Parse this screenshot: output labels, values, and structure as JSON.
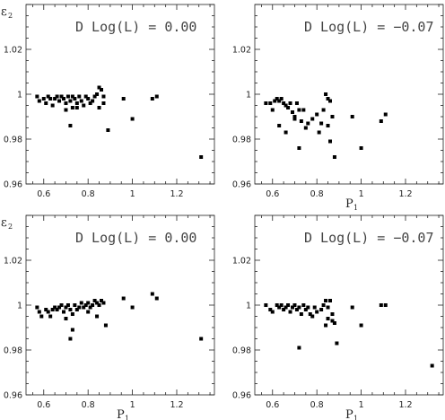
{
  "chart_data": [
    {
      "type": "scatter",
      "ylabel": "ε",
      "ylabel_sub": "2",
      "xlabel": "",
      "xlabel_sub": "",
      "annotation": "D Log(L) =  0.00",
      "xlim": [
        0.52,
        1.37
      ],
      "ylim": [
        0.96,
        1.04
      ],
      "xticks": [
        "0.6",
        "0.8",
        "1",
        "1.2"
      ],
      "yticks": [
        "0.96",
        "0.98",
        "1",
        "1.02"
      ],
      "points": [
        [
          0.57,
          0.999
        ],
        [
          0.58,
          0.997
        ],
        [
          0.6,
          0.998
        ],
        [
          0.61,
          0.996
        ],
        [
          0.62,
          0.999
        ],
        [
          0.63,
          0.998
        ],
        [
          0.64,
          0.995
        ],
        [
          0.65,
          0.998
        ],
        [
          0.66,
          0.999
        ],
        [
          0.67,
          0.997
        ],
        [
          0.68,
          0.999
        ],
        [
          0.69,
          0.998
        ],
        [
          0.7,
          0.996
        ],
        [
          0.7,
          0.993
        ],
        [
          0.71,
          0.999
        ],
        [
          0.72,
          0.997
        ],
        [
          0.73,
          0.994
        ],
        [
          0.73,
          0.999
        ],
        [
          0.74,
          0.998
        ],
        [
          0.75,
          0.996
        ],
        [
          0.75,
          0.994
        ],
        [
          0.76,
          0.999
        ],
        [
          0.77,
          0.997
        ],
        [
          0.78,
          0.995
        ],
        [
          0.79,
          0.999
        ],
        [
          0.8,
          0.998
        ],
        [
          0.81,
          0.996
        ],
        [
          0.82,
          0.997
        ],
        [
          0.83,
          0.999
        ],
        [
          0.84,
          1.0
        ],
        [
          0.85,
          1.003
        ],
        [
          0.86,
          1.002
        ],
        [
          0.87,
          0.999
        ],
        [
          0.85,
          0.994
        ],
        [
          0.87,
          0.996
        ],
        [
          0.72,
          0.986
        ],
        [
          0.89,
          0.984
        ],
        [
          0.96,
          0.998
        ],
        [
          1.0,
          0.989
        ],
        [
          1.09,
          0.998
        ],
        [
          1.11,
          0.999
        ],
        [
          1.31,
          0.972
        ]
      ]
    },
    {
      "type": "scatter",
      "ylabel": "",
      "ylabel_sub": "",
      "xlabel": "P",
      "xlabel_sub": "1",
      "annotation": "D Log(L) = −0.07",
      "xlim": [
        0.52,
        1.37
      ],
      "ylim": [
        0.96,
        1.04
      ],
      "xticks": [
        "0.6",
        "0.8",
        "1",
        "1.2"
      ],
      "yticks": [
        "0.96",
        "0.98",
        "1",
        "1.02"
      ],
      "points": [
        [
          0.57,
          0.996
        ],
        [
          0.59,
          0.996
        ],
        [
          0.6,
          0.993
        ],
        [
          0.61,
          0.997
        ],
        [
          0.62,
          0.998
        ],
        [
          0.63,
          0.997
        ],
        [
          0.64,
          0.998
        ],
        [
          0.65,
          0.996
        ],
        [
          0.66,
          0.995
        ],
        [
          0.67,
          0.994
        ],
        [
          0.68,
          0.996
        ],
        [
          0.69,
          0.992
        ],
        [
          0.7,
          0.99
        ],
        [
          0.71,
          0.996
        ],
        [
          0.72,
          0.993
        ],
        [
          0.73,
          0.988
        ],
        [
          0.74,
          0.993
        ],
        [
          0.75,
          0.985
        ],
        [
          0.76,
          0.987
        ],
        [
          0.78,
          0.989
        ],
        [
          0.8,
          0.991
        ],
        [
          0.81,
          0.983
        ],
        [
          0.82,
          0.987
        ],
        [
          0.83,
          0.993
        ],
        [
          0.84,
          1.0
        ],
        [
          0.85,
          0.998
        ],
        [
          0.86,
          0.997
        ],
        [
          0.87,
          0.99
        ],
        [
          0.85,
          0.986
        ],
        [
          0.86,
          0.979
        ],
        [
          0.88,
          0.972
        ],
        [
          0.66,
          0.983
        ],
        [
          0.63,
          0.986
        ],
        [
          0.72,
          0.976
        ],
        [
          0.7,
          0.989
        ],
        [
          0.96,
          0.99
        ],
        [
          1.0,
          0.976
        ],
        [
          1.09,
          0.988
        ],
        [
          1.11,
          0.991
        ]
      ]
    },
    {
      "type": "scatter",
      "ylabel": "ε",
      "ylabel_sub": "2",
      "xlabel": "P",
      "xlabel_sub": "1",
      "annotation": "D Log(L) =  0.00",
      "xlim": [
        0.52,
        1.37
      ],
      "ylim": [
        0.96,
        1.04
      ],
      "xticks": [
        "0.6",
        "0.8",
        "1",
        "1.2"
      ],
      "yticks": [
        "0.96",
        "0.98",
        "1",
        "1.02"
      ],
      "points": [
        [
          0.57,
          0.999
        ],
        [
          0.58,
          0.997
        ],
        [
          0.59,
          0.995
        ],
        [
          0.61,
          0.998
        ],
        [
          0.62,
          0.997
        ],
        [
          0.63,
          0.995
        ],
        [
          0.64,
          0.998
        ],
        [
          0.65,
          0.999
        ],
        [
          0.66,
          0.998
        ],
        [
          0.67,
          0.999
        ],
        [
          0.68,
          1.0
        ],
        [
          0.69,
          0.997
        ],
        [
          0.7,
          0.999
        ],
        [
          0.71,
          1.0
        ],
        [
          0.72,
          0.998
        ],
        [
          0.73,
          0.996
        ],
        [
          0.74,
          1.0
        ],
        [
          0.75,
          0.998
        ],
        [
          0.76,
          0.999
        ],
        [
          0.77,
          1.001
        ],
        [
          0.78,
          0.999
        ],
        [
          0.79,
          1.0
        ],
        [
          0.8,
          1.001
        ],
        [
          0.81,
          0.999
        ],
        [
          0.82,
          1.0
        ],
        [
          0.83,
          1.002
        ],
        [
          0.84,
          1.001
        ],
        [
          0.85,
          1.0
        ],
        [
          0.86,
          1.002
        ],
        [
          0.87,
          1.001
        ],
        [
          0.72,
          0.985
        ],
        [
          0.73,
          0.989
        ],
        [
          0.7,
          0.994
        ],
        [
          0.8,
          0.997
        ],
        [
          0.84,
          0.995
        ],
        [
          0.88,
          0.991
        ],
        [
          0.96,
          1.003
        ],
        [
          1.0,
          0.999
        ],
        [
          1.09,
          1.005
        ],
        [
          1.11,
          1.003
        ],
        [
          1.31,
          0.985
        ]
      ]
    },
    {
      "type": "scatter",
      "ylabel": "",
      "ylabel_sub": "",
      "xlabel": "P",
      "xlabel_sub": "1",
      "annotation": "D Log(L) = −0.07",
      "xlim": [
        0.52,
        1.37
      ],
      "ylim": [
        0.96,
        1.04
      ],
      "xticks": [
        "0.6",
        "0.8",
        "1",
        "1.2"
      ],
      "yticks": [
        "0.96",
        "0.98",
        "1",
        "1.02"
      ],
      "points": [
        [
          0.57,
          1.0
        ],
        [
          0.59,
          0.998
        ],
        [
          0.6,
          0.997
        ],
        [
          0.62,
          1.0
        ],
        [
          0.63,
          0.999
        ],
        [
          0.64,
          1.0
        ],
        [
          0.65,
          0.998
        ],
        [
          0.66,
          0.999
        ],
        [
          0.67,
          1.0
        ],
        [
          0.68,
          0.997
        ],
        [
          0.69,
          0.999
        ],
        [
          0.7,
          1.0
        ],
        [
          0.71,
          0.998
        ],
        [
          0.72,
          0.999
        ],
        [
          0.73,
          0.996
        ],
        [
          0.74,
          1.0
        ],
        [
          0.75,
          0.998
        ],
        [
          0.76,
          0.999
        ],
        [
          0.77,
          0.996
        ],
        [
          0.78,
          0.995
        ],
        [
          0.79,
          0.999
        ],
        [
          0.8,
          0.997
        ],
        [
          0.82,
          0.998
        ],
        [
          0.83,
          1.0
        ],
        [
          0.84,
          1.002
        ],
        [
          0.85,
          0.999
        ],
        [
          0.86,
          1.002
        ],
        [
          0.87,
          0.996
        ],
        [
          0.85,
          0.994
        ],
        [
          0.87,
          0.993
        ],
        [
          0.88,
          0.992
        ],
        [
          0.72,
          0.981
        ],
        [
          0.84,
          0.991
        ],
        [
          0.89,
          0.983
        ],
        [
          0.96,
          0.999
        ],
        [
          1.0,
          0.991
        ],
        [
          1.09,
          1.0
        ],
        [
          1.11,
          1.0
        ],
        [
          1.32,
          0.973
        ]
      ]
    }
  ]
}
